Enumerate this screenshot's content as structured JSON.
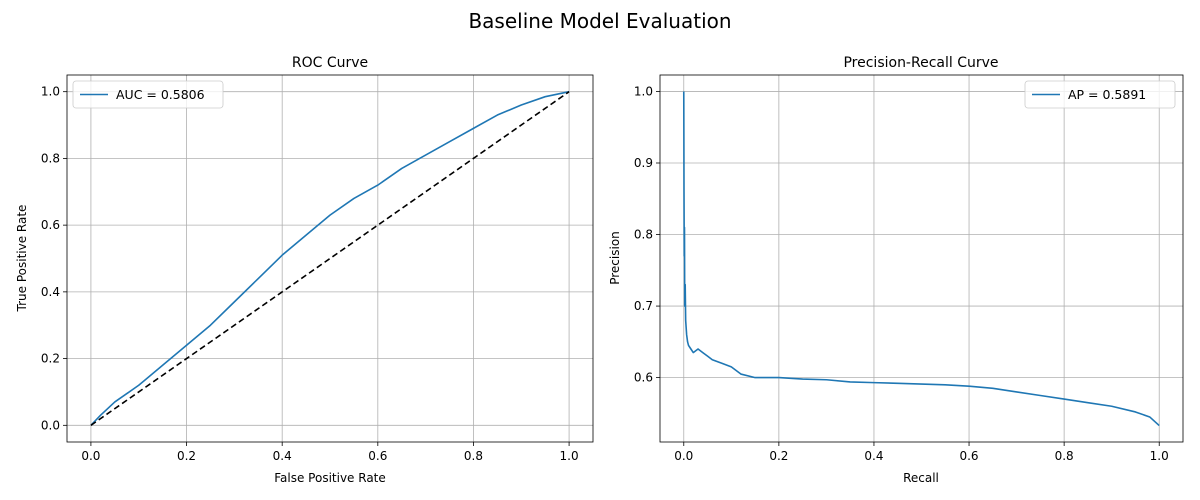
{
  "figure": {
    "title": "Baseline Model Evaluation",
    "colors": {
      "curve": "#1f77b4",
      "diagonal": "#000000",
      "grid": "#b0b0b0"
    }
  },
  "chart_data": [
    {
      "type": "line",
      "title": "ROC Curve",
      "xlabel": "False Positive Rate",
      "ylabel": "True Positive Rate",
      "xlim": [
        -0.05,
        1.05
      ],
      "ylim": [
        -0.05,
        1.05
      ],
      "xticks": [
        "0.0",
        "0.2",
        "0.4",
        "0.6",
        "0.8",
        "1.0"
      ],
      "yticks": [
        "0.0",
        "0.2",
        "0.4",
        "0.6",
        "0.8",
        "1.0"
      ],
      "grid": true,
      "legend_position": "upper-left",
      "series": [
        {
          "name": "AUC = 0.5806",
          "color": "#1f77b4",
          "style": "solid",
          "x": [
            0.0,
            0.02,
            0.05,
            0.1,
            0.15,
            0.2,
            0.25,
            0.3,
            0.35,
            0.4,
            0.45,
            0.5,
            0.55,
            0.6,
            0.65,
            0.7,
            0.75,
            0.8,
            0.85,
            0.9,
            0.95,
            1.0
          ],
          "y": [
            0.0,
            0.03,
            0.07,
            0.12,
            0.18,
            0.24,
            0.3,
            0.37,
            0.44,
            0.51,
            0.57,
            0.63,
            0.68,
            0.72,
            0.77,
            0.81,
            0.85,
            0.89,
            0.93,
            0.96,
            0.985,
            1.0
          ]
        },
        {
          "name": "",
          "color": "#000000",
          "style": "dashed",
          "x": [
            0.0,
            1.0
          ],
          "y": [
            0.0,
            1.0
          ]
        }
      ]
    },
    {
      "type": "line",
      "title": "Precision-Recall Curve",
      "xlabel": "Recall",
      "ylabel": "Precision",
      "xlim": [
        -0.05,
        1.05
      ],
      "ylim": [
        0.51,
        1.023
      ],
      "xticks": [
        "0.0",
        "0.2",
        "0.4",
        "0.6",
        "0.8",
        "1.0"
      ],
      "yticks": [
        "0.6",
        "0.7",
        "0.8",
        "0.9",
        "1.0"
      ],
      "grid": true,
      "legend_position": "upper-right",
      "series": [
        {
          "name": "AP = 0.5891",
          "color": "#1f77b4",
          "style": "solid",
          "x": [
            0.0,
            0.0005,
            0.001,
            0.0015,
            0.002,
            0.003,
            0.004,
            0.005,
            0.006,
            0.008,
            0.01,
            0.015,
            0.02,
            0.03,
            0.04,
            0.05,
            0.06,
            0.08,
            0.1,
            0.12,
            0.15,
            0.2,
            0.25,
            0.3,
            0.35,
            0.4,
            0.45,
            0.5,
            0.55,
            0.6,
            0.65,
            0.7,
            0.75,
            0.8,
            0.85,
            0.9,
            0.95,
            0.98,
            1.0
          ],
          "y": [
            1.0,
            0.86,
            0.77,
            0.81,
            0.7,
            0.73,
            0.68,
            0.67,
            0.66,
            0.65,
            0.645,
            0.64,
            0.635,
            0.64,
            0.635,
            0.63,
            0.625,
            0.62,
            0.615,
            0.605,
            0.6,
            0.6,
            0.598,
            0.597,
            0.594,
            0.593,
            0.592,
            0.591,
            0.59,
            0.588,
            0.585,
            0.58,
            0.575,
            0.57,
            0.565,
            0.56,
            0.552,
            0.545,
            0.533
          ]
        }
      ]
    }
  ]
}
